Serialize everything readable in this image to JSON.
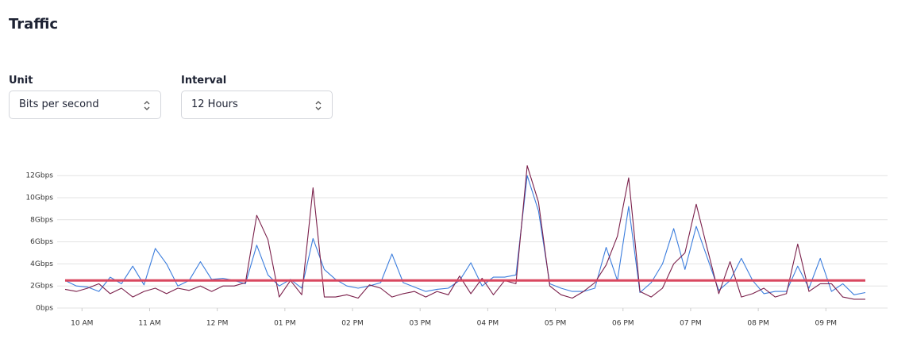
{
  "header": {
    "title": "Traffic"
  },
  "controls": {
    "unit": {
      "label": "Unit",
      "value": "Bits per second"
    },
    "interval": {
      "label": "Interval",
      "value": "12 Hours"
    }
  },
  "chart_data": {
    "type": "line",
    "x": [
      585,
      595,
      605,
      615,
      625,
      635,
      645,
      655,
      665,
      675,
      685,
      695,
      705,
      715,
      725,
      735,
      745,
      755,
      765,
      775,
      785,
      795,
      805,
      815,
      825,
      835,
      845,
      855,
      865,
      875,
      885,
      895,
      905,
      915,
      925,
      935,
      945,
      955,
      965,
      975,
      985,
      995,
      1005,
      1015,
      1025,
      1035,
      1045,
      1055,
      1065,
      1075,
      1085,
      1095,
      1105,
      1115,
      1125,
      1135,
      1145,
      1155,
      1165,
      1175,
      1185,
      1195,
      1205,
      1215,
      1225,
      1235,
      1245,
      1255,
      1265,
      1275,
      1285,
      1295
    ],
    "series": [
      {
        "color": "#3b7ddd",
        "values": [
          2.5,
          2.0,
          1.9,
          1.5,
          2.8,
          2.2,
          3.8,
          2.1,
          5.4,
          4.0,
          2.0,
          2.5,
          4.2,
          2.6,
          2.7,
          2.5,
          2.2,
          5.7,
          3.0,
          2.0,
          2.6,
          1.8,
          6.3,
          3.5,
          2.6,
          2.0,
          1.8,
          2.0,
          2.3,
          4.9,
          2.3,
          1.9,
          1.5,
          1.7,
          1.8,
          2.5,
          4.1,
          2.0,
          2.8,
          2.8,
          3.0,
          12.0,
          8.8,
          2.2,
          1.8,
          1.5,
          1.5,
          1.8,
          5.5,
          2.5,
          9.2,
          1.4,
          2.3,
          4.0,
          7.2,
          3.5,
          7.4,
          4.5,
          1.6,
          2.5,
          4.5,
          2.5,
          1.3,
          1.5,
          1.5,
          3.8,
          1.8,
          4.5,
          1.5,
          2.2,
          1.2,
          1.4
        ]
      },
      {
        "color": "#7a1f4a",
        "values": [
          1.7,
          1.5,
          1.8,
          2.2,
          1.3,
          1.8,
          1.0,
          1.5,
          1.8,
          1.3,
          1.8,
          1.6,
          2.0,
          1.5,
          2.0,
          2.0,
          2.3,
          8.4,
          6.2,
          1.0,
          2.5,
          1.2,
          10.9,
          1.0,
          1.0,
          1.2,
          0.9,
          2.1,
          1.8,
          1.0,
          1.3,
          1.5,
          1.0,
          1.5,
          1.2,
          2.9,
          1.3,
          2.7,
          1.2,
          2.5,
          2.2,
          12.9,
          9.6,
          2.0,
          1.2,
          0.9,
          1.5,
          2.3,
          3.9,
          6.5,
          11.8,
          1.5,
          1.0,
          1.8,
          4.0,
          5.0,
          9.4,
          5.3,
          1.3,
          4.2,
          1.0,
          1.3,
          1.8,
          1.0,
          1.3,
          5.8,
          1.5,
          2.2,
          2.2,
          1.0,
          0.8,
          0.8
        ]
      }
    ],
    "threshold": 2.5,
    "threshold_color": "#d9475f",
    "xlim": [
      585,
      1295
    ],
    "xticks": [
      {
        "value": 600,
        "label": "10 AM"
      },
      {
        "value": 660,
        "label": "11 AM"
      },
      {
        "value": 720,
        "label": "12 PM"
      },
      {
        "value": 780,
        "label": "01 PM"
      },
      {
        "value": 840,
        "label": "02 PM"
      },
      {
        "value": 900,
        "label": "03 PM"
      },
      {
        "value": 960,
        "label": "04 PM"
      },
      {
        "value": 1020,
        "label": "05 PM"
      },
      {
        "value": 1080,
        "label": "06 PM"
      },
      {
        "value": 1140,
        "label": "07 PM"
      },
      {
        "value": 1200,
        "label": "08 PM"
      },
      {
        "value": 1260,
        "label": "09 PM"
      }
    ],
    "ylim": [
      0,
      13
    ],
    "yticks": [
      {
        "value": 0,
        "label": "0bps"
      },
      {
        "value": 2,
        "label": "2Gbps"
      },
      {
        "value": 4,
        "label": "4Gbps"
      },
      {
        "value": 6,
        "label": "6Gbps"
      },
      {
        "value": 8,
        "label": "8Gbps"
      },
      {
        "value": 10,
        "label": "10Gbps"
      },
      {
        "value": 12,
        "label": "12Gbps"
      }
    ],
    "grid": true
  }
}
